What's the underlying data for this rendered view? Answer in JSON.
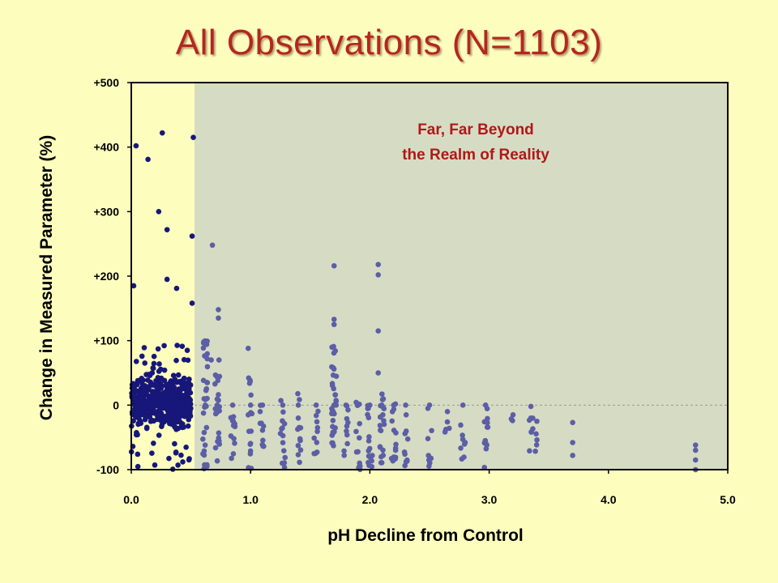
{
  "slide": {
    "title": "All Observations (N=1103)"
  },
  "chart_data": {
    "type": "scatter",
    "title": "All Observations (N=1103)",
    "xlabel": "pH Decline from Control",
    "ylabel": "Change in Measured Parameter (%)",
    "xlim": [
      0.0,
      5.0
    ],
    "ylim": [
      -100,
      500
    ],
    "xticks": [
      0.0,
      1.0,
      2.0,
      3.0,
      4.0,
      5.0
    ],
    "xtick_labels": [
      "0.0",
      "1.0",
      "2.0",
      "3.0",
      "4.0",
      "5.0"
    ],
    "yticks": [
      500,
      400,
      300,
      200,
      100,
      0,
      -100
    ],
    "ytick_labels": [
      "+500",
      "+400",
      "+300",
      "+200",
      "+100",
      "0",
      "-100"
    ],
    "grid": false,
    "reference_line": {
      "y": 0,
      "style": "dashed"
    },
    "shaded_region": {
      "x_from": 0.53,
      "x_to": 5.0,
      "label_line1": "Far, Far Beyond",
      "label_line2": "the Realm of Reality",
      "color": "#d6dcc4"
    },
    "colors": {
      "low_ph_points": "#17177a",
      "high_ph_points": "#5c5ea6",
      "background": "#fdfdbe",
      "title": "#b5261e",
      "annotation": "#b01818"
    },
    "notable_points": [
      {
        "x": 0.02,
        "y": 185
      },
      {
        "x": 0.04,
        "y": 402
      },
      {
        "x": 0.14,
        "y": 381
      },
      {
        "x": 0.26,
        "y": 422
      },
      {
        "x": 0.23,
        "y": 300
      },
      {
        "x": 0.3,
        "y": 272
      },
      {
        "x": 0.3,
        "y": 195
      },
      {
        "x": 0.38,
        "y": 181
      },
      {
        "x": 0.52,
        "y": 415
      },
      {
        "x": 0.51,
        "y": 262
      },
      {
        "x": 0.51,
        "y": 158
      },
      {
        "x": 0.68,
        "y": 248
      },
      {
        "x": 0.73,
        "y": 148
      },
      {
        "x": 0.73,
        "y": 135
      },
      {
        "x": 0.67,
        "y": 70
      },
      {
        "x": 0.98,
        "y": 88
      },
      {
        "x": 1.7,
        "y": 216
      },
      {
        "x": 1.7,
        "y": 133
      },
      {
        "x": 1.7,
        "y": 125
      },
      {
        "x": 2.07,
        "y": 218
      },
      {
        "x": 2.07,
        "y": 202
      },
      {
        "x": 2.07,
        "y": 115
      },
      {
        "x": 2.07,
        "y": 50
      },
      {
        "x": 3.35,
        "y": -2
      },
      {
        "x": 3.7,
        "y": -27
      },
      {
        "x": 3.7,
        "y": -58
      },
      {
        "x": 3.7,
        "y": -78
      },
      {
        "x": 4.73,
        "y": -62
      },
      {
        "x": 4.73,
        "y": -70
      },
      {
        "x": 4.73,
        "y": -85
      },
      {
        "x": 4.73,
        "y": -100
      }
    ],
    "column_clusters": [
      {
        "x": 0.62,
        "y_min": -100,
        "y_max": 105,
        "count": 36
      },
      {
        "x": 0.72,
        "y_min": -100,
        "y_max": 70,
        "count": 22
      },
      {
        "x": 0.85,
        "y_min": -100,
        "y_max": 20,
        "count": 12
      },
      {
        "x": 1.0,
        "y_min": -100,
        "y_max": 45,
        "count": 16
      },
      {
        "x": 1.1,
        "y_min": -70,
        "y_max": 25,
        "count": 10
      },
      {
        "x": 1.27,
        "y_min": -100,
        "y_max": 10,
        "count": 14
      },
      {
        "x": 1.4,
        "y_min": -100,
        "y_max": 25,
        "count": 12
      },
      {
        "x": 1.55,
        "y_min": -90,
        "y_max": 5,
        "count": 10
      },
      {
        "x": 1.7,
        "y_min": -100,
        "y_max": 95,
        "count": 34
      },
      {
        "x": 1.8,
        "y_min": -80,
        "y_max": 5,
        "count": 10
      },
      {
        "x": 1.9,
        "y_min": -100,
        "y_max": 10,
        "count": 14
      },
      {
        "x": 2.0,
        "y_min": -100,
        "y_max": 10,
        "count": 16
      },
      {
        "x": 2.1,
        "y_min": -100,
        "y_max": 20,
        "count": 20
      },
      {
        "x": 2.2,
        "y_min": -100,
        "y_max": 5,
        "count": 14
      },
      {
        "x": 2.3,
        "y_min": -100,
        "y_max": 0,
        "count": 10
      },
      {
        "x": 2.5,
        "y_min": -100,
        "y_max": 0,
        "count": 8
      },
      {
        "x": 2.65,
        "y_min": -50,
        "y_max": -10,
        "count": 4
      },
      {
        "x": 2.78,
        "y_min": -100,
        "y_max": 0,
        "count": 8
      },
      {
        "x": 2.97,
        "y_min": -100,
        "y_max": 0,
        "count": 12
      },
      {
        "x": 3.2,
        "y_min": -25,
        "y_max": -15,
        "count": 2
      },
      {
        "x": 3.35,
        "y_min": -75,
        "y_max": -20,
        "count": 6
      },
      {
        "x": 3.4,
        "y_min": -75,
        "y_max": -25,
        "count": 4
      }
    ],
    "dense_cluster": {
      "x_min": 0.0,
      "x_max": 0.5,
      "y_min": -100,
      "y_max": 95,
      "count": 520
    }
  }
}
